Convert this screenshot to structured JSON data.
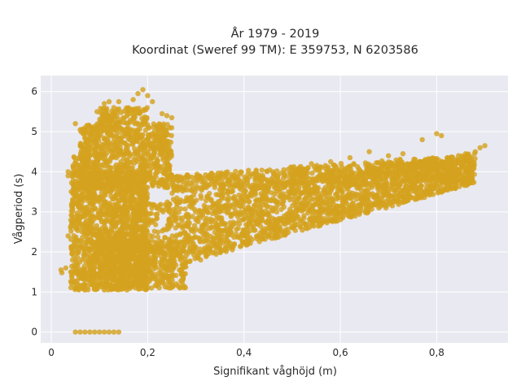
{
  "chart_data": {
    "type": "scatter",
    "title": "År 1979 - 2019",
    "subtitle": "Koordinat (Sweref 99 TM): E 359753, N 6203586",
    "xlabel": "Signifikant våghöjd (m)",
    "ylabel": "Vågperiod (s)",
    "xlim": [
      -0.022,
      0.948
    ],
    "ylim": [
      -0.27,
      6.4
    ],
    "x_ticks": [
      0,
      0.2,
      0.4,
      0.6,
      0.8
    ],
    "x_tick_labels": [
      "0",
      "0,2",
      "0,4",
      "0,6",
      "0,8"
    ],
    "y_ticks": [
      0,
      1,
      2,
      3,
      4,
      5,
      6
    ],
    "y_tick_labels": [
      "0",
      "1",
      "2",
      "3",
      "4",
      "5",
      "6"
    ],
    "grid": true,
    "legend": "none",
    "marker_color": "#d4a21e",
    "plot_bg": "#e9e9f1",
    "points": [
      [
        0.02,
        1.55
      ],
      [
        0.022,
        1.48
      ],
      [
        0.03,
        1.6
      ],
      [
        0.035,
        2.4
      ],
      [
        0.035,
        4.0
      ],
      [
        0.035,
        3.9
      ],
      [
        0.05,
        5.2
      ],
      [
        0.06,
        5.05
      ],
      [
        0.08,
        4.9
      ],
      [
        0.095,
        5.5
      ],
      [
        0.11,
        5.7
      ],
      [
        0.12,
        5.75
      ],
      [
        0.13,
        5.6
      ],
      [
        0.14,
        5.75
      ],
      [
        0.17,
        5.8
      ],
      [
        0.18,
        5.95
      ],
      [
        0.19,
        6.05
      ],
      [
        0.2,
        5.9
      ],
      [
        0.21,
        5.75
      ],
      [
        0.23,
        5.45
      ],
      [
        0.24,
        5.4
      ],
      [
        0.25,
        5.35
      ],
      [
        0.22,
        5.1
      ],
      [
        0.19,
        4.8
      ],
      [
        0.24,
        4.5
      ],
      [
        0.25,
        3.9
      ],
      [
        0.18,
        4.4
      ],
      [
        0.23,
        4.6
      ],
      [
        0.21,
        4.2
      ],
      [
        0.2,
        3.8
      ],
      [
        0.05,
        0.0
      ],
      [
        0.06,
        0.0
      ],
      [
        0.07,
        0.0
      ],
      [
        0.08,
        0.0
      ],
      [
        0.09,
        0.0
      ],
      [
        0.1,
        0.0
      ],
      [
        0.11,
        0.0
      ],
      [
        0.12,
        0.0
      ],
      [
        0.13,
        0.0
      ],
      [
        0.14,
        0.0
      ],
      [
        0.05,
        1.1
      ],
      [
        0.07,
        1.05
      ],
      [
        0.09,
        1.1
      ],
      [
        0.11,
        1.05
      ],
      [
        0.13,
        1.15
      ],
      [
        0.15,
        1.2
      ],
      [
        0.17,
        1.25
      ],
      [
        0.19,
        1.35
      ],
      [
        0.21,
        1.4
      ],
      [
        0.23,
        1.45
      ],
      [
        0.25,
        1.5
      ],
      [
        0.27,
        1.45
      ],
      [
        0.24,
        1.6
      ],
      [
        0.28,
        1.9
      ],
      [
        0.3,
        2.0
      ],
      [
        0.33,
        2.1
      ],
      [
        0.36,
        2.3
      ],
      [
        0.4,
        2.4
      ],
      [
        0.45,
        2.6
      ],
      [
        0.5,
        2.8
      ],
      [
        0.55,
        3.0
      ],
      [
        0.6,
        3.1
      ],
      [
        0.65,
        3.3
      ],
      [
        0.7,
        3.5
      ],
      [
        0.75,
        3.7
      ],
      [
        0.8,
        3.9
      ],
      [
        0.85,
        4.2
      ],
      [
        0.88,
        4.5
      ],
      [
        0.9,
        4.65
      ],
      [
        0.89,
        4.6
      ],
      [
        0.86,
        4.45
      ],
      [
        0.83,
        4.35
      ],
      [
        0.8,
        4.95
      ],
      [
        0.81,
        4.9
      ],
      [
        0.77,
        4.8
      ],
      [
        0.73,
        4.45
      ],
      [
        0.7,
        4.4
      ],
      [
        0.66,
        4.5
      ],
      [
        0.62,
        4.35
      ],
      [
        0.58,
        4.25
      ],
      [
        0.54,
        4.2
      ],
      [
        0.5,
        4.1
      ],
      [
        0.46,
        4.0
      ],
      [
        0.42,
        3.95
      ],
      [
        0.38,
        3.9
      ],
      [
        0.34,
        3.9
      ],
      [
        0.3,
        3.85
      ],
      [
        0.28,
        3.7
      ],
      [
        0.31,
        3.6
      ],
      [
        0.35,
        3.55
      ],
      [
        0.4,
        3.7
      ],
      [
        0.45,
        3.75
      ],
      [
        0.52,
        3.85
      ],
      [
        0.57,
        3.95
      ],
      [
        0.61,
        4.05
      ],
      [
        0.67,
        4.1
      ],
      [
        0.72,
        4.15
      ],
      [
        0.78,
        4.25
      ],
      [
        0.84,
        4.3
      ],
      [
        0.5,
        2.6
      ],
      [
        0.44,
        2.4
      ],
      [
        0.38,
        2.2
      ],
      [
        0.34,
        2.0
      ],
      [
        0.31,
        1.8
      ],
      [
        0.48,
        2.5
      ],
      [
        0.56,
        2.7
      ],
      [
        0.63,
        2.95
      ],
      [
        0.69,
        3.2
      ],
      [
        0.74,
        3.35
      ],
      [
        0.4,
        2.55
      ],
      [
        0.35,
        2.25
      ],
      [
        0.27,
        1.55
      ]
    ]
  }
}
